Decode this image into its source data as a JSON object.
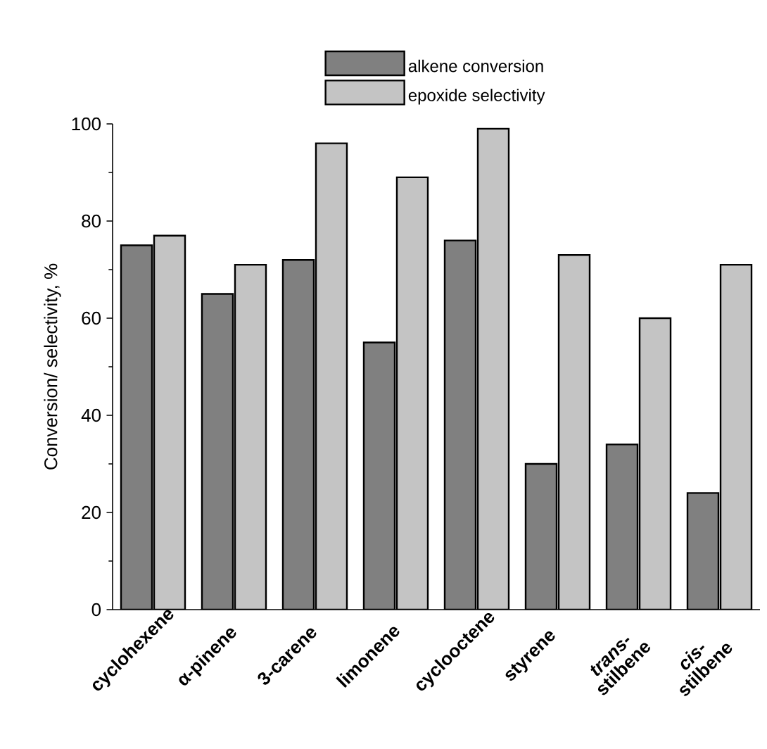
{
  "chart_data": {
    "type": "bar",
    "ylabel": "Conversion/ selectivity, %",
    "categories": [
      "cyclohexene",
      "α-pinene",
      "3-carene",
      "limonene",
      "cyclooctene",
      "styrene",
      "*trans*-stilbene",
      "*cis*-stilbene"
    ],
    "series": [
      {
        "name": "alkene conversion",
        "color": "#808080",
        "values": [
          75,
          65,
          72,
          55,
          76,
          30,
          34,
          24
        ]
      },
      {
        "name": "epoxide selectivity",
        "color": "#c4c4c4",
        "values": [
          77,
          71,
          96,
          89,
          99,
          73,
          60,
          71
        ]
      }
    ],
    "ylim": [
      0,
      100
    ],
    "yticks": [
      0,
      20,
      40,
      60,
      80,
      100
    ],
    "legend": "top",
    "grid": false
  }
}
